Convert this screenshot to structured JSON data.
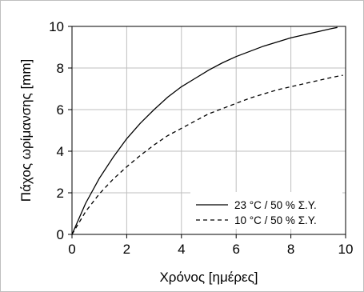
{
  "chart_data": {
    "type": "line",
    "xlabel": "Χρόνος [ημέρες]",
    "ylabel": "Πάχος ωρίμανσης [mm]",
    "xlim": [
      0,
      10
    ],
    "ylim": [
      0,
      10
    ],
    "xticks": [
      "0",
      "2",
      "4",
      "6",
      "8",
      "10"
    ],
    "yticks": [
      "0",
      "2",
      "4",
      "6",
      "8",
      "10"
    ],
    "grid": true,
    "legend_position": "bottom-right",
    "series": [
      {
        "name": "23 °C / 50 % Σ.Υ.",
        "line_style": "solid",
        "color": "#000000",
        "x": [
          0,
          0.5,
          1,
          1.5,
          2,
          2.5,
          3,
          3.5,
          4,
          4.5,
          5,
          5.5,
          6,
          6.5,
          7,
          7.5,
          8,
          8.5,
          9,
          9.5,
          9.7
        ],
        "y": [
          0,
          1.5,
          2.7,
          3.7,
          4.6,
          5.35,
          6.0,
          6.6,
          7.1,
          7.5,
          7.9,
          8.25,
          8.55,
          8.8,
          9.05,
          9.25,
          9.45,
          9.6,
          9.75,
          9.9,
          9.95
        ]
      },
      {
        "name": "10 °C / 50 % Σ.Υ.",
        "line_style": "dashed",
        "color": "#000000",
        "x": [
          0,
          0.5,
          1,
          1.5,
          2,
          2.5,
          3,
          3.5,
          4,
          4.5,
          5,
          5.5,
          6,
          6.5,
          7,
          7.5,
          8,
          8.5,
          9,
          9.5,
          9.9
        ],
        "y": [
          0,
          1.1,
          1.95,
          2.65,
          3.25,
          3.8,
          4.3,
          4.75,
          5.1,
          5.45,
          5.8,
          6.05,
          6.3,
          6.55,
          6.75,
          6.95,
          7.1,
          7.25,
          7.4,
          7.55,
          7.65
        ]
      }
    ]
  }
}
